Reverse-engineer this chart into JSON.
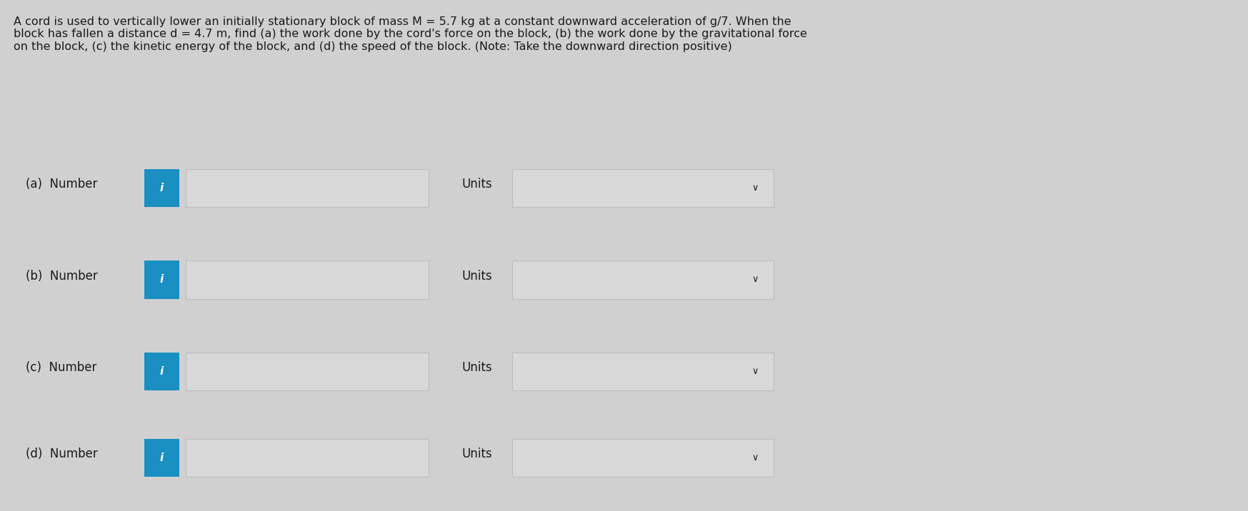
{
  "background_color": "#d0d0d0",
  "title_text": "A cord is used to vertically lower an initially stationary block of mass M = 5.7 kg at a constant downward acceleration of g/7. When the\nblock has fallen a distance d = 4.7 m, find (a) the work done by the cord's force on the block, (b) the work done by the gravitational force\non the block, (c) the kinetic energy of the block, and (d) the speed of the block. (Note: Take the downward direction positive)",
  "rows": [
    {
      "label": "(a)  Number",
      "units_label": "Units"
    },
    {
      "label": "(b)  Number",
      "units_label": "Units"
    },
    {
      "label": "(c)  Number",
      "units_label": "Units"
    },
    {
      "label": "(d)  Number",
      "units_label": "Units"
    }
  ],
  "info_button_color": "#1a8fc1",
  "info_button_text_color": "#ffffff",
  "input_box_color": "#d8d8d8",
  "input_box_border_color": "#b0b0b0",
  "dropdown_color": "#d8d8d8",
  "dropdown_border_color": "#b0b0b0",
  "text_color": "#1a1a1a",
  "title_fontsize": 11.5,
  "label_fontsize": 12,
  "fig_width": 17.47,
  "fig_height": 7.16
}
